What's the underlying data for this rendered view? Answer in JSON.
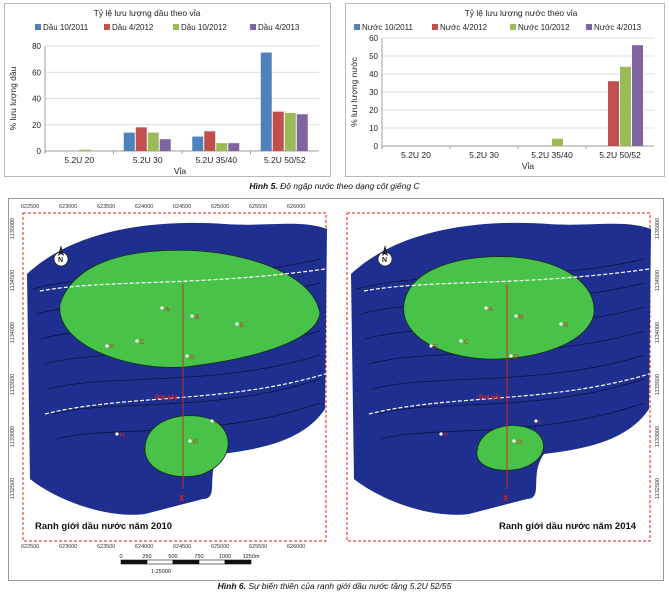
{
  "chart_data": [
    {
      "type": "bar",
      "title": "Tỷ lệ lưu lượng dầu theo vỉa",
      "xlabel": "Vỉa",
      "ylabel": "% lưu lượng dầu",
      "ylim": [
        0,
        80
      ],
      "yticks": [
        0,
        20,
        40,
        60,
        80
      ],
      "grid": true,
      "legend": "top",
      "categories": [
        "5.2U 20",
        "5.2U 30",
        "5.2U 35/40",
        "5.2U 50/52"
      ],
      "series": [
        {
          "name": "Dầu 10/2011",
          "color": "#4f81bd",
          "values": [
            0,
            14,
            11,
            75
          ]
        },
        {
          "name": "Dầu 4/2012",
          "color": "#c0504d",
          "values": [
            0,
            18,
            15,
            30
          ]
        },
        {
          "name": "Dầu 10/2012",
          "color": "#9bbb59",
          "values": [
            1,
            14,
            6,
            29
          ]
        },
        {
          "name": "Dầu 4/2013",
          "color": "#8064a2",
          "values": [
            0,
            9,
            6,
            28
          ]
        }
      ]
    },
    {
      "type": "bar",
      "title": "Tỷ lệ lưu lượng nước theo vỉa",
      "xlabel": "Vỉa",
      "ylabel": "% lưu lượng nước",
      "ylim": [
        0,
        60
      ],
      "yticks": [
        0,
        10,
        20,
        30,
        40,
        50,
        60
      ],
      "grid": true,
      "legend": "top",
      "categories": [
        "5.2U 20",
        "5.2U 30",
        "5.2U 35/40",
        "5.2U 50/52"
      ],
      "series": [
        {
          "name": "Nước 10/2011",
          "color": "#4f81bd",
          "values": [
            0,
            0,
            0,
            0
          ]
        },
        {
          "name": "Nước 4/2012",
          "color": "#c0504d",
          "values": [
            0,
            0,
            0,
            36
          ]
        },
        {
          "name": "Nước 10/2012",
          "color": "#9bbb59",
          "values": [
            0,
            0,
            4,
            44
          ]
        },
        {
          "name": "Nước 4/2013",
          "color": "#8064a2",
          "values": [
            0,
            0,
            0,
            56
          ]
        }
      ]
    }
  ],
  "captions": {
    "fig5": {
      "label": "Hình 5.",
      "text": "Độ ngập nước theo dạng cột giếng C"
    },
    "fig6": {
      "label": "Hình 6.",
      "text": "Sự biến thiên của ranh giới dầu nước tầng 5.2U 52/55"
    }
  },
  "maps": {
    "left_title": "Ranh giới dầu nước năm 2010",
    "right_title": "Ranh giới dầu nước năm 2014",
    "fault_label": "Đứt gãy",
    "section_marker": "X",
    "well_letters": [
      "A",
      "B",
      "C",
      "D",
      "E",
      "F",
      "G",
      "H",
      "I"
    ],
    "top_ticks": [
      "622500",
      "623000",
      "623500",
      "624000",
      "624500",
      "625000",
      "625500",
      "626000"
    ],
    "side_ticks": [
      "1135000",
      "1134500",
      "1134000",
      "1133500",
      "1133000",
      "1132500"
    ],
    "scale_ticks": [
      "0",
      "250",
      "500",
      "750",
      "1000",
      "1250m"
    ],
    "scale_ratio": "1:25000",
    "colors": {
      "water": "#1e2f8f",
      "oil": "#49c24a",
      "frame_red": "#e2201b"
    }
  }
}
